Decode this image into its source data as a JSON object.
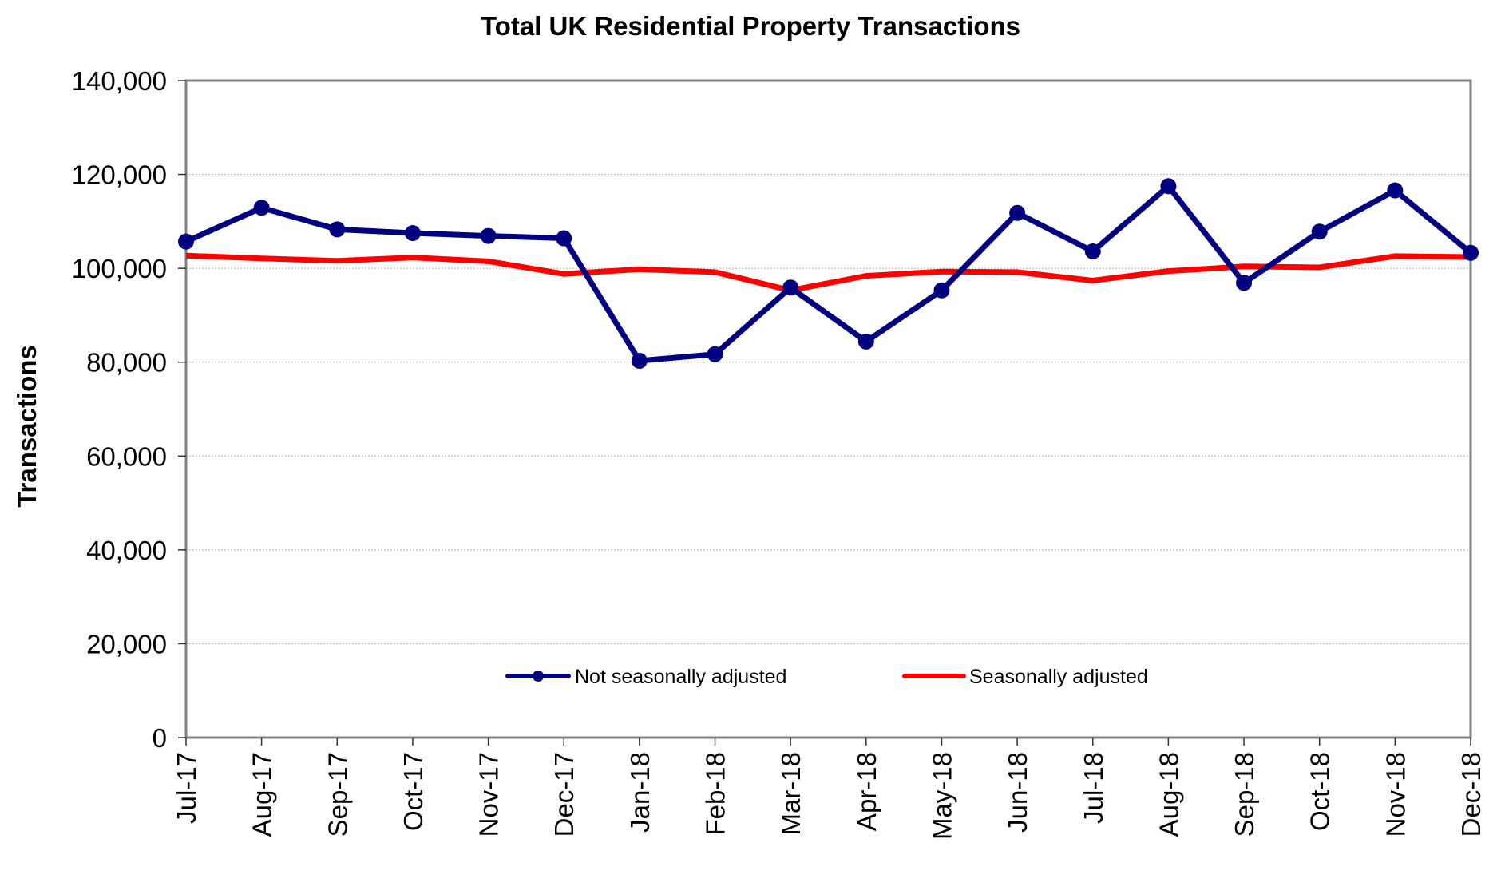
{
  "chart_data": {
    "type": "line",
    "title": "Total UK Residential Property Transactions",
    "xlabel": "",
    "ylabel": "Transactions",
    "ylim": [
      0,
      140000
    ],
    "yticks": [
      0,
      20000,
      40000,
      60000,
      80000,
      100000,
      120000,
      140000
    ],
    "ytick_labels": [
      "0",
      "20,000",
      "40,000",
      "60,000",
      "80,000",
      "100,000",
      "120,000",
      "140,000"
    ],
    "grid": true,
    "legend_position": "bottom-center-inside",
    "categories": [
      "Jul-17",
      "Aug-17",
      "Sep-17",
      "Oct-17",
      "Nov-17",
      "Dec-17",
      "Jan-18",
      "Feb-18",
      "Mar-18",
      "Apr-18",
      "May-18",
      "Jun-18",
      "Jul-18",
      "Aug-18",
      "Sep-18",
      "Oct-18",
      "Nov-18",
      "Dec-18"
    ],
    "series": [
      {
        "name": "Not seasonally adjusted",
        "color": "#000080",
        "marker": "circle",
        "values": [
          105700,
          112900,
          108300,
          107500,
          106900,
          106400,
          80300,
          81700,
          95900,
          84400,
          95300,
          111800,
          103600,
          117500,
          96900,
          107800,
          116600,
          103300
        ]
      },
      {
        "name": "Seasonally adjusted",
        "color": "#ff0000",
        "marker": "none",
        "values": [
          102700,
          102100,
          101600,
          102300,
          101500,
          98800,
          99800,
          99200,
          95300,
          98400,
          99300,
          99200,
          97400,
          99400,
          100400,
          100200,
          102600,
          102400
        ]
      }
    ]
  }
}
